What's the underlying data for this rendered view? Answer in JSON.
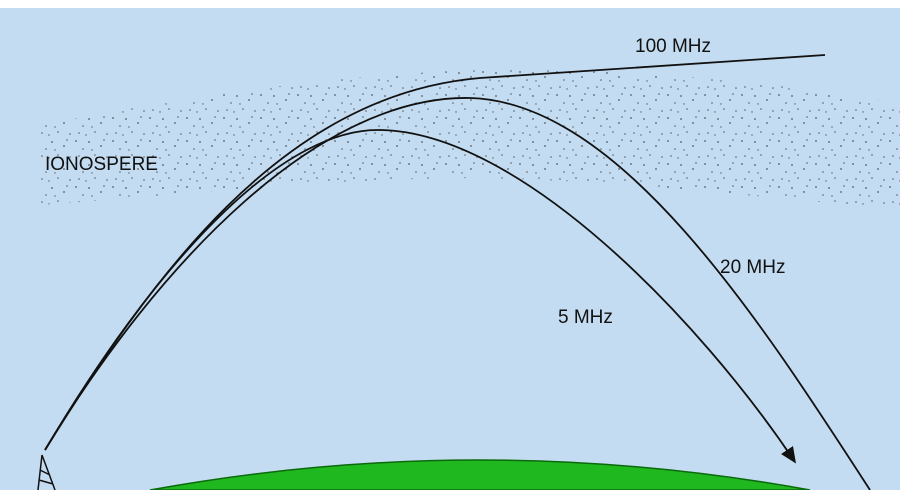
{
  "layer_label": "IONOSPERE",
  "curves": [
    {
      "label": "100 MHz"
    },
    {
      "label": "20 MHz"
    },
    {
      "label": "5 MHz"
    }
  ]
}
